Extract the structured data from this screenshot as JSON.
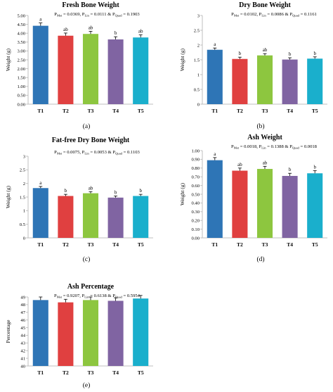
{
  "colors": {
    "T1": "#2e75b6",
    "T2": "#e04040",
    "T3": "#8dc63f",
    "T4": "#8064a2",
    "T5": "#1aafcc",
    "axis": "#bfbfbf",
    "text": "#000000"
  },
  "chart_data": [
    {
      "id": "a",
      "type": "bar",
      "title": "Fresh Bone Weight",
      "pvalues": {
        "p1": "P",
        "p1sub": "Met",
        "p1val": " = 0.0369, ",
        "p2": "P",
        "p2sub": "Lin",
        "p2val": " = 0.0111 & ",
        "p3": "P",
        "p3sub": "Quad",
        "p3val": " = 0.1903"
      },
      "ylabel": "Weight (g)",
      "xlabel": "",
      "panel_label": "(a)",
      "categories": [
        "T1",
        "T2",
        "T3",
        "T4",
        "T5"
      ],
      "values": [
        4.42,
        3.86,
        3.96,
        3.65,
        3.76
      ],
      "errors": [
        0.16,
        0.15,
        0.15,
        0.15,
        0.15
      ],
      "letters": [
        "a",
        "ab",
        "ab",
        "b",
        "ab"
      ],
      "ylim": [
        0,
        5
      ],
      "yticks": [
        "0.00",
        "0.50",
        "1.00",
        "1.50",
        "2.00",
        "2.50",
        "3.00",
        "3.50",
        "4.00",
        "4.50",
        "5.00"
      ],
      "grid": false,
      "legend": "none"
    },
    {
      "id": "b",
      "type": "bar",
      "title": "Dry Bone Weight",
      "pvalues": {
        "p1": "P",
        "p1sub": "Met",
        "p1val": " = 0.0102, ",
        "p2": "P",
        "p2sub": "Lin",
        "p2val": " = 0.0086 & ",
        "p3": "P",
        "p3sub": "Quad",
        "p3val": " = 0.1161"
      },
      "ylabel": "Weight (g)",
      "xlabel": "",
      "panel_label": "(b)",
      "categories": [
        "T1",
        "T2",
        "T3",
        "T4",
        "T5"
      ],
      "values": [
        1.84,
        1.53,
        1.65,
        1.51,
        1.54
      ],
      "errors": [
        0.06,
        0.06,
        0.06,
        0.06,
        0.06
      ],
      "letters": [
        "a",
        "b",
        "ab",
        "b",
        "b"
      ],
      "ylim": [
        0,
        3
      ],
      "yticks": [
        "0",
        "0.5",
        "1",
        "1.5",
        "2",
        "2.5",
        "3"
      ],
      "grid": false,
      "legend": "none"
    },
    {
      "id": "c",
      "type": "bar",
      "title": "Fat-free Dry Bone Weight",
      "pvalues": {
        "p1": "P",
        "p1sub": "Met",
        "p1val": " = 0.0075, ",
        "p2": "P",
        "p2sub": "Lin",
        "p2val": " = 0.0053 & ",
        "p3": "P",
        "p3sub": "Quad",
        "p3val": " = 0.1103"
      },
      "ylabel": "Weight (g)",
      "xlabel": "",
      "panel_label": "(c)",
      "categories": [
        "T1",
        "T2",
        "T3",
        "T4",
        "T5"
      ],
      "values": [
        1.83,
        1.54,
        1.64,
        1.48,
        1.54
      ],
      "errors": [
        0.06,
        0.06,
        0.06,
        0.06,
        0.06
      ],
      "letters": [
        "a",
        "b",
        "ab",
        "b",
        "b"
      ],
      "ylim": [
        0,
        3
      ],
      "yticks": [
        "0",
        "0.5",
        "1",
        "1.5",
        "2",
        "2.5",
        "3"
      ],
      "grid": false,
      "legend": "none"
    },
    {
      "id": "d",
      "type": "bar",
      "title": "Ash Weight",
      "pvalues": {
        "p1": "P",
        "p1sub": "Met",
        "p1val": " = 0.0018, ",
        "p2": "P",
        "p2sub": "Lin",
        "p2val": " = 0.1388 & ",
        "p3": "P",
        "p3sub": "Quad",
        "p3val": " = 0.0018"
      },
      "ylabel": "Weight (g)",
      "xlabel": "",
      "panel_label": "(d)",
      "categories": [
        "T1",
        "T2",
        "T3",
        "T4",
        "T5"
      ],
      "values": [
        0.89,
        0.77,
        0.79,
        0.71,
        0.74
      ],
      "errors": [
        0.03,
        0.03,
        0.03,
        0.03,
        0.03
      ],
      "letters": [
        "a",
        "ab",
        "ab",
        "b",
        "b"
      ],
      "ylim": [
        0,
        1
      ],
      "yticks": [
        "0.00",
        "0.10",
        "0.20",
        "0.30",
        "0.40",
        "0.50",
        "0.60",
        "0.70",
        "0.80",
        "0.90",
        "1.00"
      ],
      "grid": false,
      "legend": "none"
    },
    {
      "id": "e",
      "type": "bar",
      "title": "Ash Percentage",
      "pvalues": {
        "p1": "P",
        "p1sub": "Met",
        "p1val": " = 0.9207, ",
        "p2": "P",
        "p2sub": "Lin",
        "p2val": " = 0.6138 & ",
        "p3": "P",
        "p3sub": "Quad",
        "p3val": " = 0.5954"
      },
      "ylabel": "Percentage",
      "xlabel": "",
      "panel_label": "(e)",
      "categories": [
        "T1",
        "T2",
        "T3",
        "T4",
        "T5"
      ],
      "values": [
        48.6,
        48.3,
        48.6,
        48.5,
        48.8
      ],
      "errors": [
        0.4,
        0.4,
        0.4,
        0.4,
        0.4
      ],
      "letters": [
        "",
        "",
        "",
        "",
        ""
      ],
      "ylim": [
        40,
        49
      ],
      "yticks": [
        "40",
        "41",
        "42",
        "43",
        "44",
        "45",
        "46",
        "47",
        "48",
        "49"
      ],
      "grid": false,
      "legend": "none"
    }
  ]
}
